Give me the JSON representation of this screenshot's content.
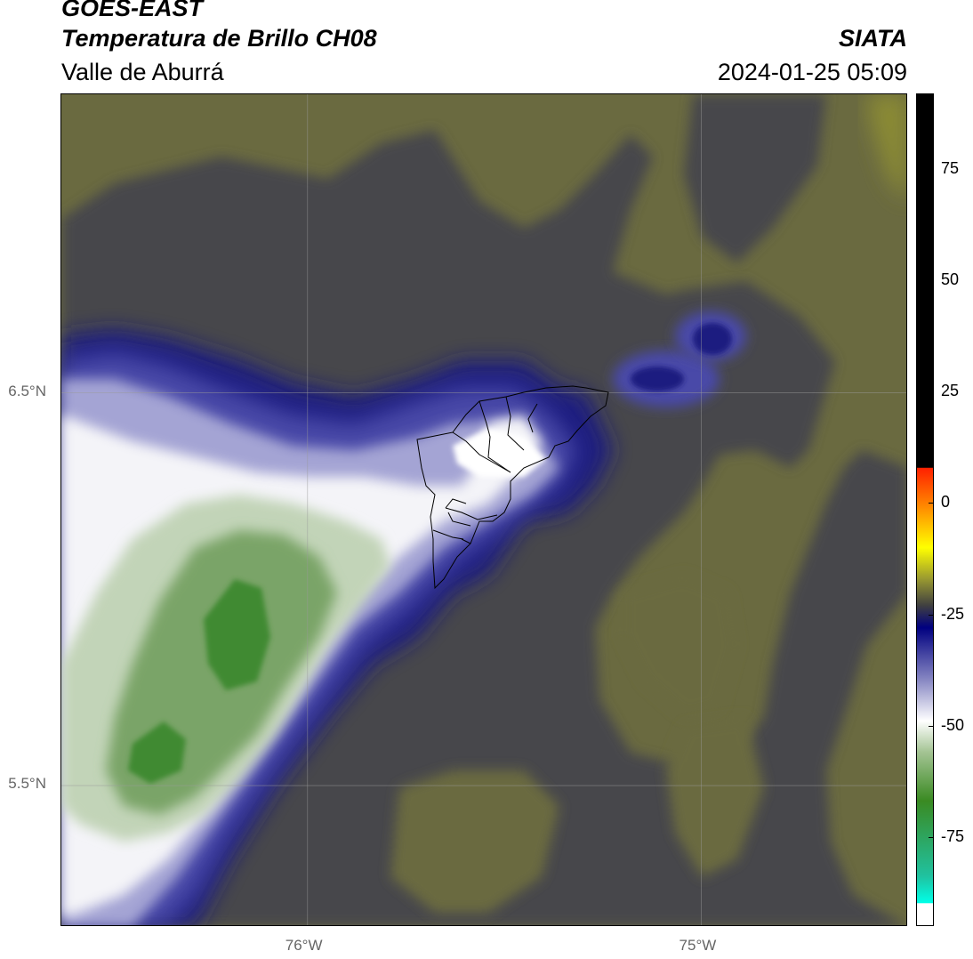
{
  "header": {
    "satellite": "GOES-EAST",
    "product": "Temperatura de Brillo CH08",
    "region": "Valle de Aburrá",
    "agency": "SIATA",
    "datetime": "2024-01-25 05:09"
  },
  "map": {
    "lon_range": [
      -76.625,
      -74.475
    ],
    "lat_range": [
      5.14,
      7.26
    ],
    "gridlines": {
      "lat": [
        {
          "value": 6.5,
          "label": "6.5°N"
        },
        {
          "value": 5.5,
          "label": "5.5°N"
        }
      ],
      "lon": [
        {
          "value": -76.0,
          "label": "76°W"
        },
        {
          "value": -75.0,
          "label": "75°W"
        }
      ]
    },
    "colors": {
      "background_olive": "#6a6a40",
      "gray_cloud": "#46464c",
      "deep_blue": "#1a1a80",
      "mid_blue": "#4a4aa8",
      "white_cold": "#f4f4f8",
      "pale_green": "#c2d4b8",
      "mid_green": "#7aa468",
      "deep_green": "#3f8a30",
      "boundary": "#000000"
    }
  },
  "colorbar": {
    "range": [
      -95,
      92
    ],
    "ticks": [
      {
        "value": 75,
        "label": "75"
      },
      {
        "value": 50,
        "label": "50"
      },
      {
        "value": 25,
        "label": "25"
      },
      {
        "value": 0,
        "label": "0"
      },
      {
        "value": -25,
        "label": "-25"
      },
      {
        "value": -50,
        "label": "-50"
      },
      {
        "value": -75,
        "label": "-75"
      }
    ],
    "stops": [
      {
        "value": 92,
        "color": "#000000"
      },
      {
        "value": 8,
        "color": "#000000"
      },
      {
        "value": 7.9,
        "color": "#ff2000"
      },
      {
        "value": 0,
        "color": "#ff8000"
      },
      {
        "value": -10,
        "color": "#ffff00"
      },
      {
        "value": -17,
        "color": "#9a9a30"
      },
      {
        "value": -23,
        "color": "#404040"
      },
      {
        "value": -28,
        "color": "#000080"
      },
      {
        "value": -40,
        "color": "#8a8ac4"
      },
      {
        "value": -49,
        "color": "#ffffff"
      },
      {
        "value": -56,
        "color": "#a4c494"
      },
      {
        "value": -67,
        "color": "#3a8a22"
      },
      {
        "value": -84,
        "color": "#20c2a0"
      },
      {
        "value": -90,
        "color": "#00ffe8"
      },
      {
        "value": -90.1,
        "color": "#ffffff"
      },
      {
        "value": -95,
        "color": "#ffffff"
      }
    ]
  }
}
